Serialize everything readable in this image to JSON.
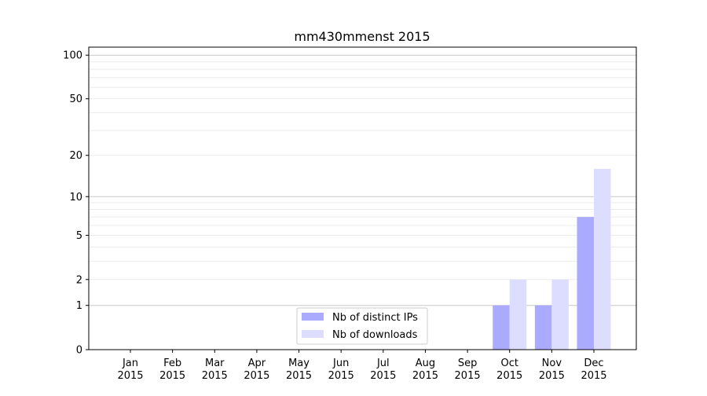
{
  "chart_data": {
    "type": "bar",
    "title": "mm430mmenst 2015",
    "xlabel": "",
    "ylabel": "",
    "yscale": "symlog (log10(1+y))",
    "ylim": [
      0,
      113
    ],
    "yticks": [
      0,
      1,
      2,
      5,
      10,
      20,
      50,
      100
    ],
    "grid": true,
    "categories": [
      "Jan\n2015",
      "Feb\n2015",
      "Mar\n2015",
      "Apr\n2015",
      "May\n2015",
      "Jun\n2015",
      "Jul\n2015",
      "Aug\n2015",
      "Sep\n2015",
      "Oct\n2015",
      "Nov\n2015",
      "Dec\n2015"
    ],
    "series": [
      {
        "name": "Nb of distinct IPs",
        "color": "#aaaaff",
        "values": [
          0,
          0,
          0,
          0,
          0,
          0,
          0,
          0,
          0,
          1,
          1,
          7
        ]
      },
      {
        "name": "Nb of downloads",
        "color": "#ddddff",
        "values": [
          0,
          0,
          0,
          0,
          0,
          0,
          0,
          0,
          0,
          2,
          2,
          16
        ]
      }
    ],
    "legend_position": "bottom-center"
  }
}
